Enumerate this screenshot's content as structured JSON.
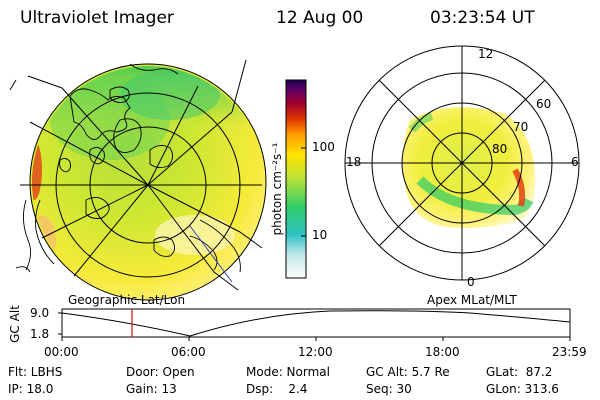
{
  "header": {
    "title": "Ultraviolet Imager",
    "date": "12 Aug 00",
    "time": "03:23:54 UT"
  },
  "colorbar": {
    "unit_label": "photon cm⁻²s⁻¹",
    "ticks": [
      "100",
      "10"
    ]
  },
  "polar": {
    "mlt_labels": [
      "12",
      "18",
      "6",
      "0"
    ],
    "lat_labels": [
      "60",
      "70",
      "80"
    ]
  },
  "left_caption": "Geographic Lat/Lon",
  "right_caption": "Apex MLat/MLT",
  "timeline": {
    "ylabel": "GC Alt",
    "yticks": [
      "9.0",
      "1.8"
    ],
    "xticks": [
      "00:00",
      "06:00",
      "12:00",
      "18:00",
      "23:59"
    ]
  },
  "info": {
    "row1": {
      "flt": "Flt: LBHS",
      "door": "Door: Open",
      "mode": "Mode: Normal",
      "gcalt": "GC Alt: 5.7 Re",
      "glat": "GLat:  87.2"
    },
    "row2": {
      "ip": "IP: 18.0",
      "gain": "Gain: 13",
      "dsp": "Dsp:    2.4",
      "seq": "Seq: 30",
      "glon": "GLon: 313.6"
    }
  }
}
